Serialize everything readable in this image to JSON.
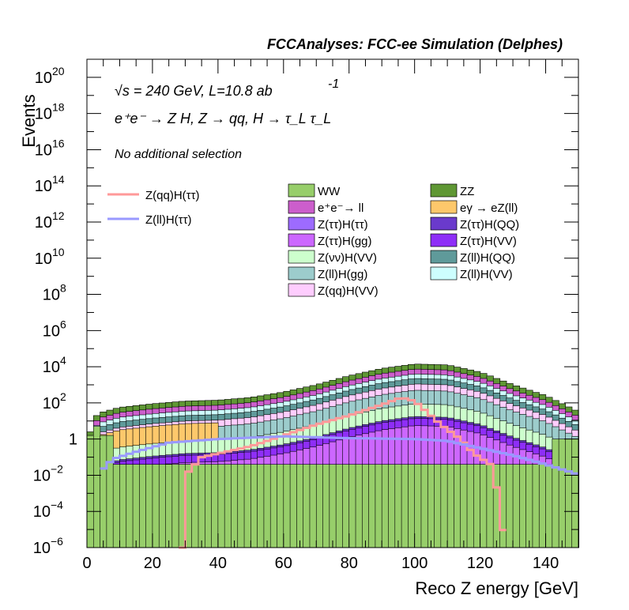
{
  "header": "FCCAnalyses: FCC-ee Simulation (Delphes)",
  "annotations": {
    "energy_lumi": "√s = 240 GeV, L=10.8 ab",
    "lumi_exp": "-1",
    "process": "e⁺e⁻ → Z H, Z → qq, H → τ_L τ_L",
    "selection": "No additional selection"
  },
  "chart_data": {
    "type": "histogram",
    "xlabel": "Reco Z energy [GeV]",
    "ylabel": "Events",
    "xlim": [
      0,
      150
    ],
    "ylim_log10": [
      -6,
      21
    ],
    "y_scale": "log",
    "x_ticks": [
      0,
      20,
      40,
      60,
      80,
      100,
      120,
      140
    ],
    "y_ticks_exp": [
      -6,
      -4,
      -2,
      0,
      2,
      4,
      6,
      8,
      10,
      12,
      14,
      16,
      18,
      20
    ],
    "bin_width": 2,
    "stack_series": [
      {
        "name": "WW",
        "color": "#97ce6a"
      },
      {
        "name": "ZZ",
        "color": "#5f9734"
      },
      {
        "name": "e⁺e⁻→ ll",
        "color": "#cc5ecc"
      },
      {
        "name": "eγ → eZ(ll)",
        "color": "#fdc86b"
      },
      {
        "name": "Z(ττ)H(ττ)",
        "color": "#9d6bff"
      },
      {
        "name": "Z(ττ)H(QQ)",
        "color": "#6a3acc"
      },
      {
        "name": "Z(ττ)H(gg)",
        "color": "#cc67ff"
      },
      {
        "name": "Z(ττ)H(VV)",
        "color": "#8e2ef7"
      },
      {
        "name": "Z(νν)H(VV)",
        "color": "#cdffcd"
      },
      {
        "name": "Z(ll)H(QQ)",
        "color": "#5f9a9a"
      },
      {
        "name": "Z(ll)H(gg)",
        "color": "#9ccccc"
      },
      {
        "name": "Z(ll)H(VV)",
        "color": "#cdfefe"
      },
      {
        "name": "Z(qq)H(VV)",
        "color": "#fecdfe"
      }
    ],
    "line_series": [
      {
        "name": "Z(qq)H(ττ)",
        "color": "#ff9999"
      },
      {
        "name": "Z(ll)H(ττ)",
        "color": "#9999ff"
      }
    ],
    "stack_total_profile_log10": [
      [
        1,
        0.4
      ],
      [
        3,
        1.3
      ],
      [
        5,
        1.5
      ],
      [
        10,
        1.75
      ],
      [
        20,
        1.95
      ],
      [
        30,
        2.1
      ],
      [
        40,
        2.15
      ],
      [
        50,
        2.3
      ],
      [
        60,
        2.6
      ],
      [
        70,
        3.0
      ],
      [
        80,
        3.5
      ],
      [
        90,
        3.9
      ],
      [
        100,
        4.15
      ],
      [
        110,
        4.1
      ],
      [
        120,
        3.7
      ],
      [
        130,
        3.0
      ],
      [
        140,
        2.4
      ],
      [
        149,
        1.6
      ]
    ],
    "zqqhtautau_profile_log10": [
      [
        29,
        -6.2
      ],
      [
        30,
        -2.0
      ],
      [
        35,
        -1.0
      ],
      [
        40,
        -0.8
      ],
      [
        50,
        -0.4
      ],
      [
        60,
        0.2
      ],
      [
        70,
        0.8
      ],
      [
        80,
        1.3
      ],
      [
        90,
        1.9
      ],
      [
        96,
        2.3
      ],
      [
        100,
        2.1
      ],
      [
        108,
        0.8
      ],
      [
        114,
        0.0
      ],
      [
        118,
        -0.8
      ],
      [
        124,
        -1.5
      ],
      [
        128,
        -6.2
      ]
    ],
    "zllhtautau_profile_log10": [
      [
        4,
        -1.8
      ],
      [
        8,
        -1.1
      ],
      [
        15,
        -0.7
      ],
      [
        25,
        -0.2
      ],
      [
        40,
        0.0
      ],
      [
        60,
        0.15
      ],
      [
        80,
        0.05
      ],
      [
        100,
        0.0
      ],
      [
        110,
        -0.1
      ],
      [
        120,
        -0.5
      ],
      [
        130,
        -0.9
      ],
      [
        140,
        -1.4
      ],
      [
        149,
        -1.9
      ]
    ]
  }
}
